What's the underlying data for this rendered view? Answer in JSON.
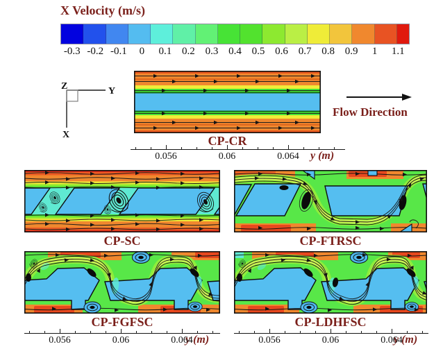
{
  "title": "X Velocity (m/s)",
  "colorbar": {
    "tick_labels": [
      "-0.3",
      "-0.2",
      "-0.1",
      "0",
      "0.1",
      "0.2",
      "0.3",
      "0.4",
      "0.5",
      "0.6",
      "0.7",
      "0.8",
      "0.9",
      "1",
      "1.1"
    ],
    "colors": [
      "#0202DF",
      "#2251EC",
      "#4187F0",
      "#54BCF0",
      "#5EEFDB",
      "#60F0A7",
      "#62F175",
      "#47E336",
      "#52E22E",
      "#8DE930",
      "#BAEF45",
      "#EFEC38",
      "#F2C53C",
      "#F0882E",
      "#E85323",
      "#E0190E"
    ]
  },
  "triad": {
    "z": "Z",
    "y": "Y",
    "x": "X"
  },
  "flow_direction_label": "Flow Direction",
  "panels": {
    "cr": {
      "label": "CP-CR"
    },
    "sc": {
      "label": "CP-SC"
    },
    "ftrsc": {
      "label": "CP-FTRSC"
    },
    "fgfsc": {
      "label": "CP-FGFSC"
    },
    "ldhfsc": {
      "label": "CP-LDHFSC"
    }
  },
  "axis": {
    "unit": "y (m)",
    "ticks": [
      "0.056",
      "0.06",
      "0.064"
    ]
  },
  "colors": {
    "accent_text": "#7A1F1A",
    "axis_line": "#151515",
    "channel_blue": "#55BEF0"
  },
  "chart_data": {
    "type": "heatmap",
    "title": "X Velocity (m/s)",
    "unit": "m/s",
    "colorbar_levels": [
      -0.3,
      -0.2,
      -0.1,
      0,
      0.1,
      0.2,
      0.3,
      0.4,
      0.5,
      0.6,
      0.7,
      0.8,
      0.9,
      1,
      1.1
    ],
    "colorbar_colors": [
      "#0202DF",
      "#2251EC",
      "#4187F0",
      "#54BCF0",
      "#5EEFDB",
      "#60F0A7",
      "#62F175",
      "#47E336",
      "#52E22E",
      "#8DE930",
      "#BAEF45",
      "#EFEC38",
      "#F2C53C",
      "#F0882E",
      "#E85323",
      "#E0190E"
    ],
    "xlabel": "y (m)",
    "x_ticks": [
      0.056,
      0.06,
      0.064
    ],
    "x_minor_step": 0.001,
    "flow_direction": "left to right",
    "velocity_range_ms": [
      -0.3,
      1.1
    ],
    "panels": [
      {
        "label": "CP-CR",
        "position": "top center",
        "pattern": "straight channel: high-velocity orange (~0.8-1 m/s) wall layers with streamwise arrows, stagnant blue core (~0 m/s)"
      },
      {
        "label": "CP-SC",
        "position": "middle left",
        "pattern": "slant-cut fins: blue parallelogram fins, recirculation vortices (~0 m/s) in slanted gaps, main flow along walls (~0.8-1.1 m/s)"
      },
      {
        "label": "CP-FTRSC",
        "position": "middle right",
        "pattern": "flow weaves through slant gaps (~0.3-0.6 m/s green band), vortex cores in gaps, wall notches"
      },
      {
        "label": "CP-FGFSC",
        "position": "bottom left",
        "pattern": "serpentine flow through stepped fin gaps, wall-notch vortices, orange-red wall jets"
      },
      {
        "label": "CP-LDHFSC",
        "position": "bottom right",
        "pattern": "serpentine flow through stepped fin gaps, wall-notch vortices, orange-red wall jets"
      }
    ]
  }
}
